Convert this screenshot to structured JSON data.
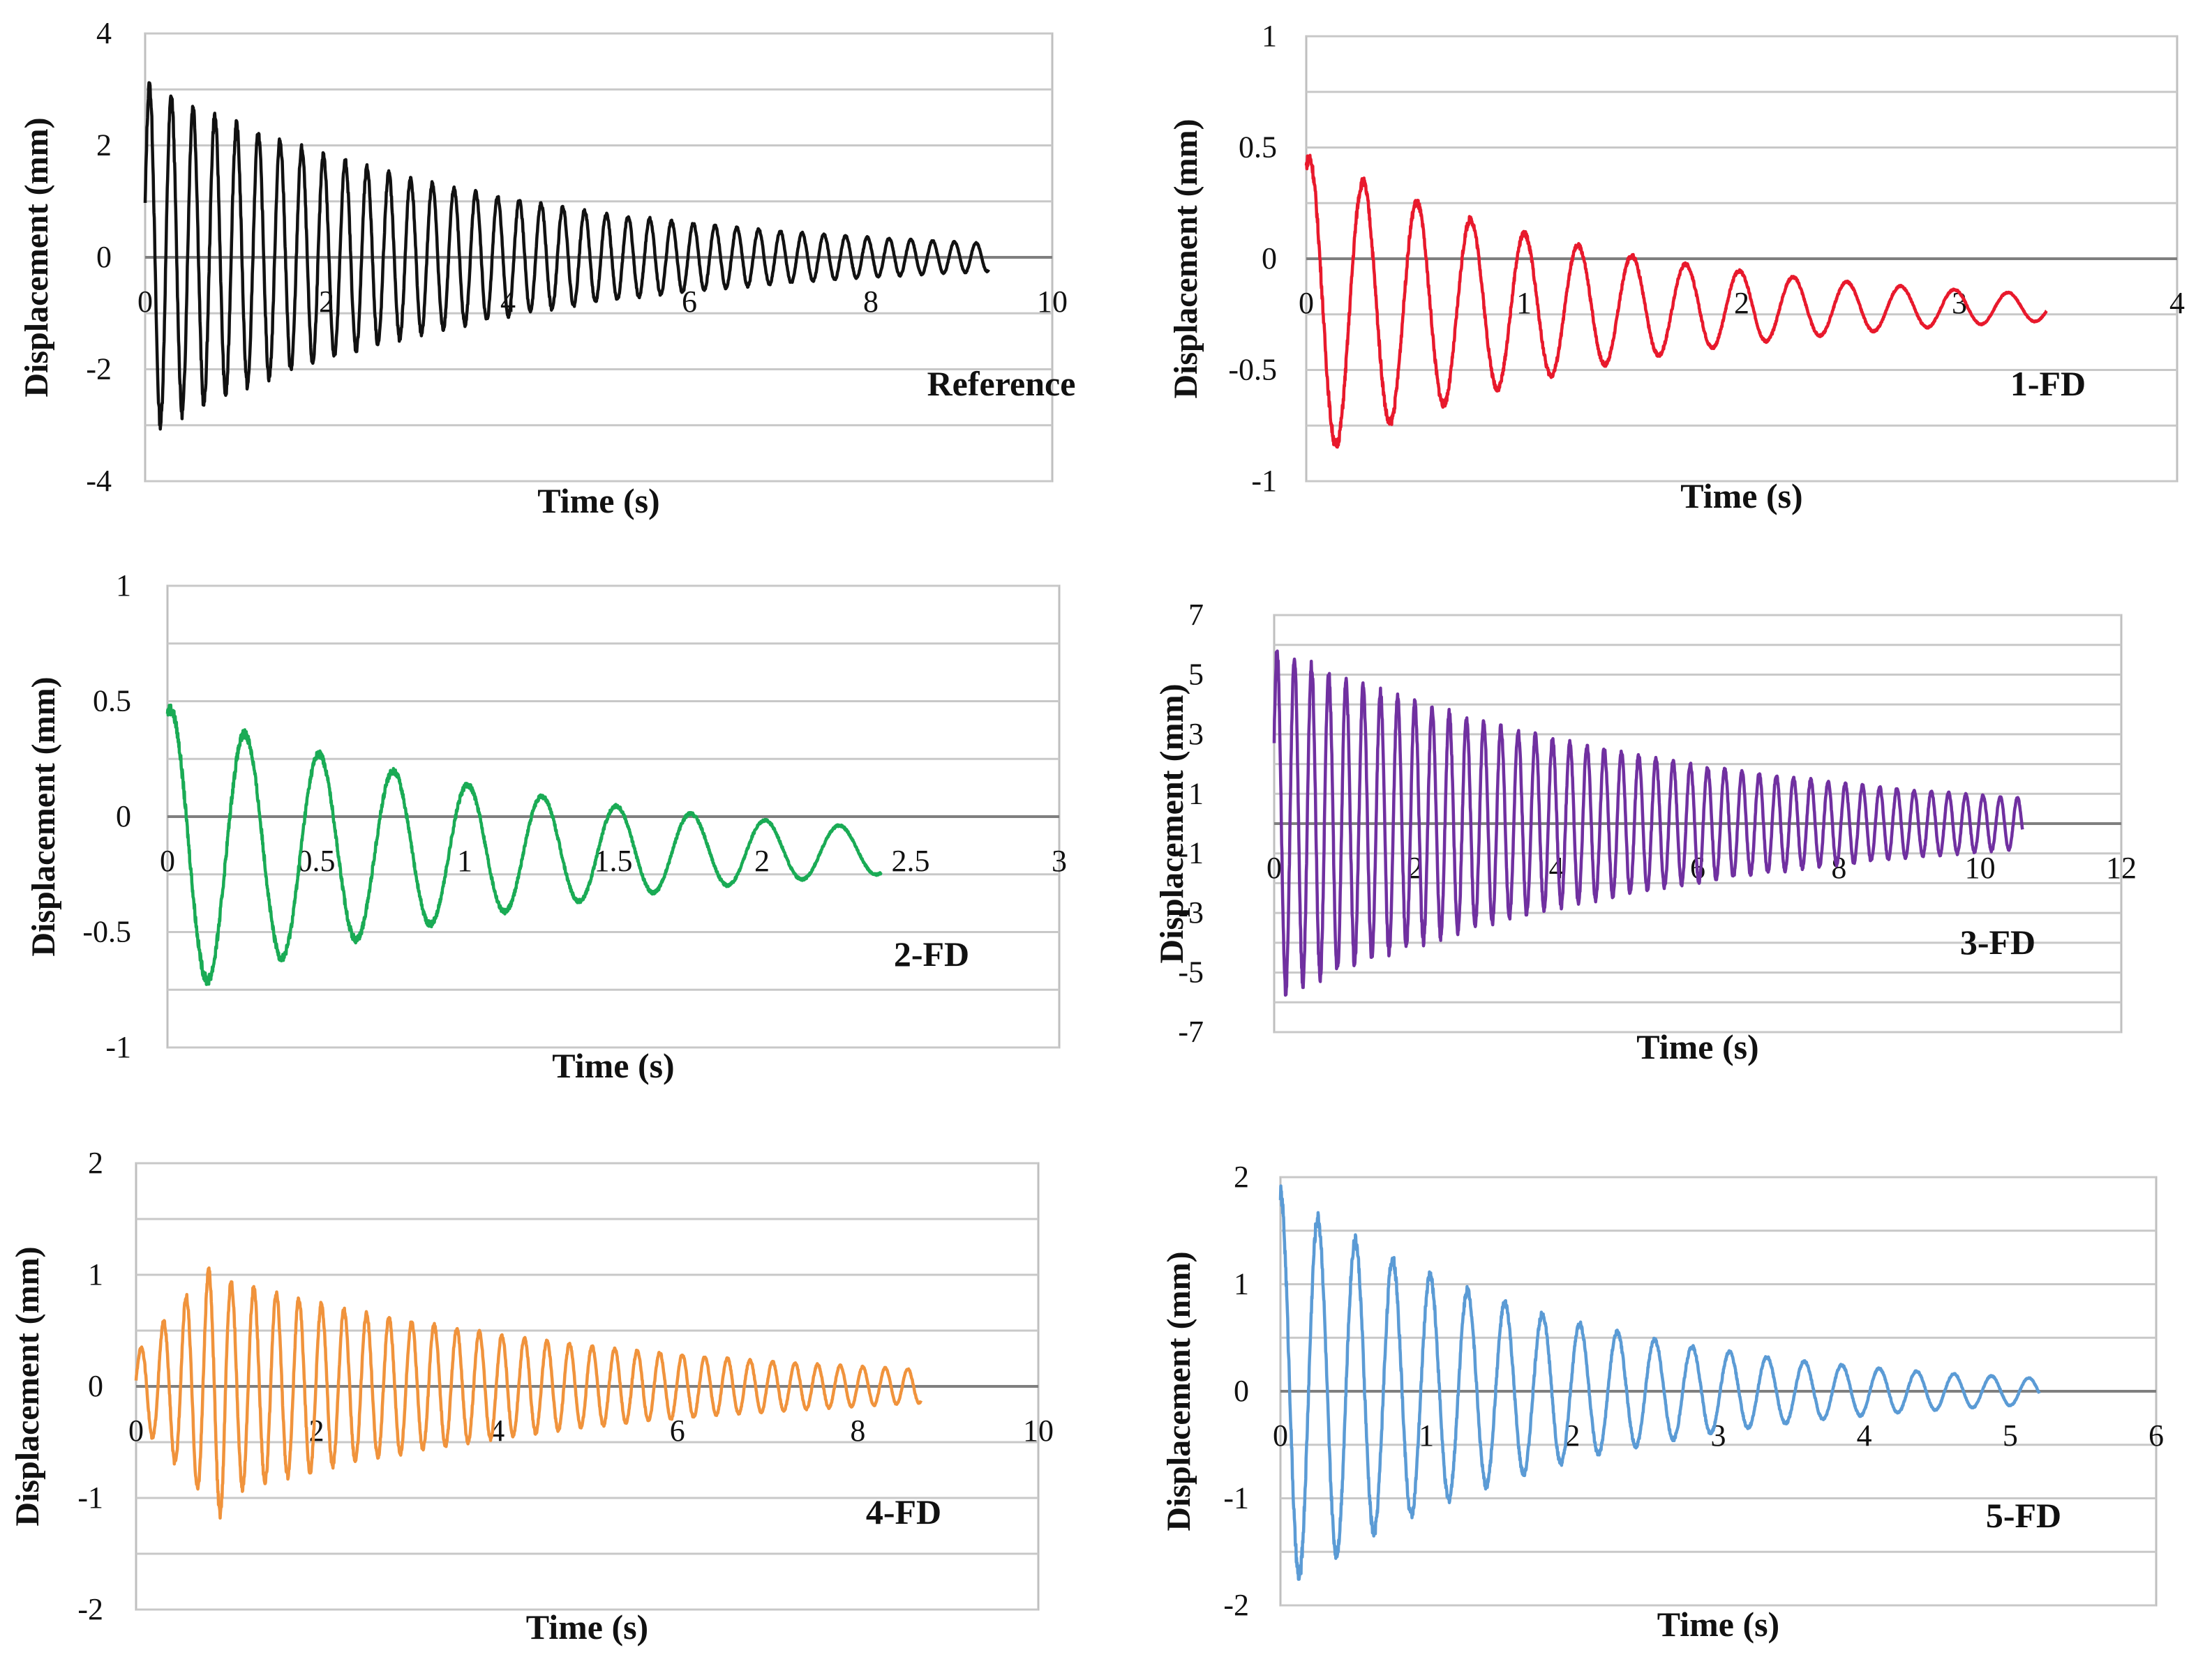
{
  "chart_data": [
    {
      "type": "line",
      "title": "Reference",
      "xlabel": "Time (s)",
      "ylabel": "Displacement (mm)",
      "xlim": [
        0,
        10
      ],
      "ylim": [
        -4,
        4
      ],
      "xticks": [
        "0",
        "2",
        "4",
        "6",
        "8",
        "10"
      ],
      "yticks": [
        "4",
        "2",
        "0",
        "-2",
        "-4"
      ],
      "grid": true,
      "series": [
        {
          "name": "Reference",
          "color": "#111111",
          "signal": {
            "freq": 4.17,
            "t_end": 9.3,
            "amp_start": 3.1,
            "amp_end": 0.25,
            "offset": 0,
            "phase": 0.3
          }
        }
      ]
    },
    {
      "type": "line",
      "title": "1-FD",
      "xlabel": "Time (s)",
      "ylabel": "Displacement (mm)",
      "xlim": [
        0,
        4
      ],
      "ylim": [
        -1,
        1
      ],
      "xticks": [
        "0",
        "1",
        "2",
        "3",
        "4"
      ],
      "yticks": [
        "1",
        "0.5",
        "0",
        "-0.5",
        "-1"
      ],
      "grid": true,
      "series": [
        {
          "name": "1-FD",
          "color": "#e8192c",
          "signal": {
            "freq": 4.05,
            "t_end": 3.4,
            "amp_start": 0.68,
            "amp_end": 0.06,
            "offset": -0.22,
            "phase": 1.2
          }
        }
      ]
    },
    {
      "type": "line",
      "title": "2-FD",
      "xlabel": "Time (s)",
      "ylabel": "Displacement (mm)",
      "xlim": [
        0,
        3
      ],
      "ylim": [
        -1,
        1
      ],
      "xticks": [
        "0",
        "0.5",
        "1",
        "1.5",
        "2",
        "2.5",
        "3"
      ],
      "yticks": [
        "1",
        "0.5",
        "0",
        "-0.5",
        "-1"
      ],
      "grid": true,
      "series": [
        {
          "name": "2-FD",
          "color": "#1aab55",
          "signal": {
            "freq": 4.0,
            "t_end": 2.4,
            "amp_start": 0.62,
            "amp_end": 0.1,
            "offset": -0.15,
            "phase": 1.3
          }
        }
      ]
    },
    {
      "type": "line",
      "title": "3-FD",
      "xlabel": "Time (s)",
      "ylabel": "Displacement (mm)",
      "xlim": [
        0,
        12
      ],
      "ylim": [
        -7,
        7
      ],
      "xticks": [
        "0",
        "2",
        "4",
        "6",
        "8",
        "10",
        "12"
      ],
      "yticks": [
        "7",
        "5",
        "3",
        "1",
        "-1",
        "-3",
        "-5",
        "-7"
      ],
      "grid": true,
      "series": [
        {
          "name": "3-FD",
          "color": "#7030a0",
          "signal": {
            "freq": 4.1,
            "t_end": 10.6,
            "amp_start": 5.8,
            "amp_end": 0.85,
            "offset": 0,
            "phase": 0.5
          }
        }
      ]
    },
    {
      "type": "line",
      "title": "4-FD",
      "xlabel": "Time (s)",
      "ylabel": "Displacement (mm)",
      "xlim": [
        0,
        10
      ],
      "ylim": [
        -2,
        2
      ],
      "xticks": [
        "0",
        "2",
        "4",
        "6",
        "8",
        "10"
      ],
      "yticks": [
        "2",
        "1",
        "0",
        "-1",
        "-2"
      ],
      "grid": true,
      "series": [
        {
          "name": "4-FD",
          "color": "#f0933c",
          "signal": {
            "freq": 4.0,
            "t_end": 8.7,
            "amp_start": 1.2,
            "amp_end": 0.15,
            "offset": 0,
            "phase": 0.2,
            "ramp_until": 1.0
          }
        }
      ]
    },
    {
      "type": "line",
      "title": "5-FD",
      "xlabel": "Time (s)",
      "ylabel": "Displacement (mm)",
      "xlim": [
        0,
        6
      ],
      "ylim": [
        -2,
        2
      ],
      "xticks": [
        "0",
        "1",
        "2",
        "3",
        "4",
        "5",
        "6"
      ],
      "yticks": [
        "2",
        "1",
        "0",
        "-1",
        "-2"
      ],
      "grid": true,
      "series": [
        {
          "name": "5-FD",
          "color": "#5b9bd5",
          "signal": {
            "freq": 3.9,
            "t_end": 5.2,
            "amp_start": 1.85,
            "amp_end": 0.12,
            "offset": 0,
            "phase": 1.57
          }
        }
      ]
    }
  ]
}
